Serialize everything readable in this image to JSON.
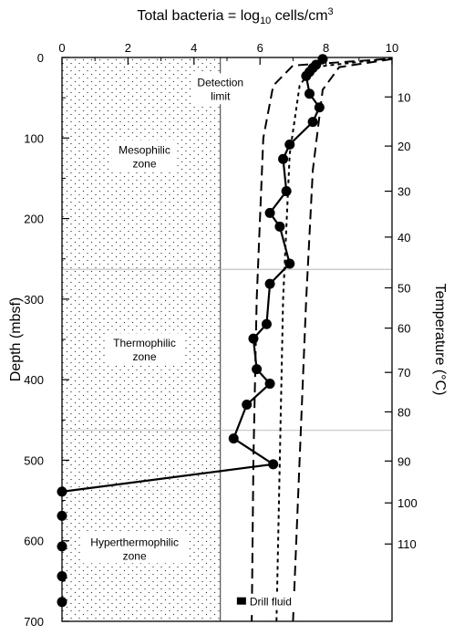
{
  "chart_data": {
    "type": "line",
    "title_prefix": "Total bacteria = log",
    "title_sub": "10",
    "title_mid": " cells/cm",
    "title_sup": "3",
    "ylabel": "Depth (mbsf)",
    "y2label": "Temperature (°C)",
    "xlim": [
      0,
      10
    ],
    "ylim": [
      0,
      700
    ],
    "x_ticks": [
      "0",
      "2",
      "4",
      "6",
      "8",
      "10"
    ],
    "y_ticks": [
      "0",
      "100",
      "200",
      "300",
      "400",
      "500",
      "600",
      "700"
    ],
    "y2_ticks": [
      "10",
      "20",
      "30",
      "40",
      "50",
      "60",
      "70",
      "80",
      "90",
      "100",
      "110"
    ],
    "y2_tick_depths": [
      49,
      110,
      166,
      223,
      286,
      336,
      391,
      440,
      501,
      553,
      604
    ],
    "detection_limit": 4.8,
    "zone_boundaries": [
      263,
      463
    ],
    "zones": [
      {
        "line1": "Mesophilic",
        "line2": "zone",
        "x": 2.5,
        "y": 125
      },
      {
        "line1": "Thermophilic",
        "line2": "zone",
        "x": 2.5,
        "y": 365
      },
      {
        "line1": "Hyperthermophilic",
        "line2": "zone",
        "x": 2.2,
        "y": 612
      }
    ],
    "annotation_detection": {
      "line1": "Detection",
      "line2": "limit",
      "x": 4.8,
      "y": 40
    },
    "drill_fluid_label": "Drill fluid",
    "drill_fluid_marker": {
      "x": 5.3,
      "y": 677
    },
    "series": [
      {
        "points": [
          [
            7.9,
            2
          ],
          [
            7.7,
            9
          ],
          [
            7.6,
            13
          ],
          [
            7.5,
            18
          ],
          [
            7.4,
            23
          ],
          [
            7.5,
            45
          ],
          [
            7.8,
            62
          ],
          [
            7.6,
            80
          ],
          [
            6.9,
            108
          ],
          [
            6.7,
            126
          ],
          [
            6.8,
            166
          ],
          [
            6.3,
            193
          ],
          [
            6.6,
            210
          ],
          [
            6.9,
            256
          ],
          [
            6.3,
            281
          ],
          [
            6.2,
            331
          ],
          [
            5.8,
            349
          ],
          [
            5.9,
            387
          ],
          [
            6.3,
            405
          ],
          [
            5.6,
            431
          ],
          [
            5.2,
            473
          ],
          [
            6.4,
            505
          ],
          [
            0,
            539
          ]
        ],
        "nondetect_depths": [
          569,
          607,
          644,
          676
        ]
      }
    ],
    "temperature_curves": [
      {
        "style": "long-dash",
        "points": [
          [
            9.8,
            2
          ],
          [
            7.0,
            10
          ],
          [
            6.4,
            35
          ],
          [
            6.1,
            100
          ],
          [
            5.9,
            300
          ],
          [
            5.8,
            500
          ],
          [
            5.75,
            700
          ]
        ]
      },
      {
        "style": "short-dash",
        "points": [
          [
            10.0,
            1
          ],
          [
            7.6,
            12
          ],
          [
            7.2,
            35
          ],
          [
            6.9,
            120
          ],
          [
            6.7,
            300
          ],
          [
            6.6,
            500
          ],
          [
            6.5,
            700
          ]
        ]
      },
      {
        "style": "long-dash",
        "points": [
          [
            10.0,
            2
          ],
          [
            8.4,
            12
          ],
          [
            7.9,
            40
          ],
          [
            7.6,
            140
          ],
          [
            7.4,
            300
          ],
          [
            7.2,
            500
          ],
          [
            7.0,
            700
          ]
        ]
      }
    ],
    "grid": false
  }
}
